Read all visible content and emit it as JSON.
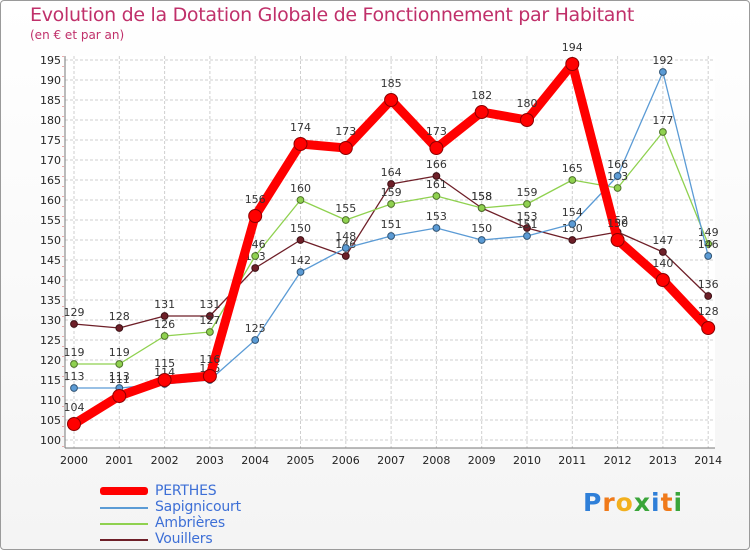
{
  "header": {
    "title": "Evolution de la Dotation Globale de Fonctionnement par Habitant",
    "subtitle": "(en € et par an)"
  },
  "logo": {
    "text": "Proxiti",
    "letters": [
      "P",
      "r",
      "o",
      "x",
      "i",
      "t",
      "i"
    ],
    "colors": [
      "#2f7fd8",
      "#f07a1a",
      "#f2b01e",
      "#3aa53a",
      "#2f7fd8",
      "#f07a1a",
      "#3aa53a"
    ]
  },
  "chart_data": {
    "type": "line",
    "x": [
      "2000",
      "2001",
      "2002",
      "2003",
      "2004",
      "2005",
      "2006",
      "2007",
      "2008",
      "2009",
      "2010",
      "2011",
      "2012",
      "2013",
      "2014"
    ],
    "ylim": [
      100,
      195
    ],
    "yticks": [
      100,
      105,
      110,
      115,
      120,
      125,
      130,
      135,
      140,
      145,
      150,
      155,
      160,
      165,
      170,
      175,
      180,
      185,
      190,
      195
    ],
    "grid": true,
    "legend": "bottom-left",
    "series": [
      {
        "name": "Vouillers",
        "color": "#6e1f28",
        "values": [
          129,
          128,
          131,
          131,
          143,
          150,
          146,
          164,
          166,
          158,
          153,
          150,
          152,
          147,
          136
        ]
      },
      {
        "name": "Ambrières",
        "color": "#8fd14f",
        "values": [
          119,
          119,
          126,
          127,
          146,
          160,
          155,
          159,
          161,
          158,
          159,
          165,
          163,
          177,
          149
        ]
      },
      {
        "name": "Sapignicourt",
        "color": "#5b9bd5",
        "values": [
          113,
          113,
          114,
          115,
          125,
          142,
          148,
          151,
          153,
          150,
          151,
          154,
          166,
          192,
          146
        ]
      },
      {
        "name": "PERTHES",
        "color": "#ff0000",
        "values": [
          104,
          111,
          115,
          116,
          156,
          174,
          173,
          185,
          173,
          182,
          180,
          194,
          150,
          140,
          128
        ]
      }
    ]
  },
  "legend": {
    "items": [
      {
        "name": "PERTHES",
        "color": "#ff0000"
      },
      {
        "name": "Sapignicourt",
        "color": "#5b9bd5"
      },
      {
        "name": "Ambrières",
        "color": "#8fd14f"
      },
      {
        "name": "Vouillers",
        "color": "#6e1f28"
      }
    ]
  }
}
